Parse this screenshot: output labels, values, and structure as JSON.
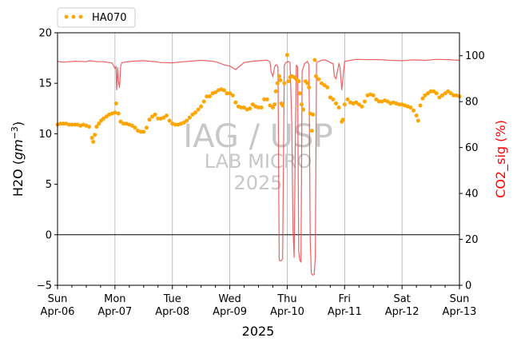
{
  "chart_data": {
    "type": "line",
    "xlabel": "2025",
    "ylabel_left": "H2O (gm^-3)",
    "ylabel_right": "CO2_sig (%)",
    "ylim_left": [
      -5,
      20
    ],
    "ylim_right": [
      0,
      110
    ],
    "yticks_left": [
      "−5",
      "0",
      "5",
      "10",
      "15",
      "20"
    ],
    "yticks_right": [
      "0",
      "20",
      "40",
      "60",
      "80",
      "100"
    ],
    "x_tick_labels": [
      {
        "day": "Sun",
        "date": "Apr-06"
      },
      {
        "day": "Mon",
        "date": "Apr-07"
      },
      {
        "day": "Tue",
        "date": "Apr-08"
      },
      {
        "day": "Wed",
        "date": "Apr-09"
      },
      {
        "day": "Thu",
        "date": "Apr-10"
      },
      {
        "day": "Fri",
        "date": "Apr-11"
      },
      {
        "day": "Sat",
        "date": "Apr-12"
      },
      {
        "day": "Sun",
        "date": "Apr-13"
      }
    ],
    "xlim_days": [
      0,
      7
    ],
    "grid": "vertical at major ticks",
    "legend_position": "top-left above plot",
    "watermark": [
      "IAG / USP",
      "LAB MICRO",
      "2025"
    ],
    "series": [
      {
        "name": "HA070",
        "axis": "left",
        "style": "dots",
        "color": "#ffa500",
        "points": [
          [
            0.0,
            10.9
          ],
          [
            0.05,
            11.0
          ],
          [
            0.1,
            11.0
          ],
          [
            0.15,
            11.0
          ],
          [
            0.2,
            10.9
          ],
          [
            0.25,
            10.9
          ],
          [
            0.3,
            10.9
          ],
          [
            0.35,
            10.9
          ],
          [
            0.4,
            10.8
          ],
          [
            0.45,
            10.9
          ],
          [
            0.5,
            10.8
          ],
          [
            0.55,
            10.7
          ],
          [
            0.6,
            9.6
          ],
          [
            0.62,
            9.2
          ],
          [
            0.65,
            9.9
          ],
          [
            0.68,
            10.7
          ],
          [
            0.72,
            11.0
          ],
          [
            0.76,
            11.3
          ],
          [
            0.8,
            11.5
          ],
          [
            0.85,
            11.7
          ],
          [
            0.9,
            11.9
          ],
          [
            0.95,
            12.0
          ],
          [
            1.0,
            12.1
          ],
          [
            1.02,
            13.0
          ],
          [
            1.06,
            12.0
          ],
          [
            1.1,
            11.2
          ],
          [
            1.15,
            11.0
          ],
          [
            1.2,
            11.0
          ],
          [
            1.25,
            10.9
          ],
          [
            1.3,
            10.8
          ],
          [
            1.35,
            10.6
          ],
          [
            1.4,
            10.3
          ],
          [
            1.45,
            10.2
          ],
          [
            1.5,
            10.2
          ],
          [
            1.55,
            10.6
          ],
          [
            1.6,
            11.4
          ],
          [
            1.65,
            11.7
          ],
          [
            1.7,
            11.9
          ],
          [
            1.75,
            11.5
          ],
          [
            1.8,
            11.5
          ],
          [
            1.85,
            11.6
          ],
          [
            1.9,
            11.8
          ],
          [
            1.95,
            11.3
          ],
          [
            2.0,
            11.0
          ],
          [
            2.05,
            10.9
          ],
          [
            2.1,
            10.9
          ],
          [
            2.15,
            11.0
          ],
          [
            2.2,
            11.1
          ],
          [
            2.25,
            11.3
          ],
          [
            2.3,
            11.6
          ],
          [
            2.35,
            11.9
          ],
          [
            2.4,
            12.1
          ],
          [
            2.45,
            12.4
          ],
          [
            2.5,
            12.7
          ],
          [
            2.55,
            13.2
          ],
          [
            2.6,
            13.7
          ],
          [
            2.65,
            13.7
          ],
          [
            2.7,
            14.0
          ],
          [
            2.75,
            14.1
          ],
          [
            2.8,
            14.3
          ],
          [
            2.85,
            14.4
          ],
          [
            2.9,
            14.3
          ],
          [
            2.95,
            14.0
          ],
          [
            3.0,
            14.0
          ],
          [
            3.05,
            13.8
          ],
          [
            3.1,
            13.1
          ],
          [
            3.15,
            12.7
          ],
          [
            3.2,
            12.6
          ],
          [
            3.25,
            12.6
          ],
          [
            3.3,
            12.4
          ],
          [
            3.35,
            12.5
          ],
          [
            3.4,
            12.9
          ],
          [
            3.45,
            12.7
          ],
          [
            3.5,
            12.6
          ],
          [
            3.55,
            12.6
          ],
          [
            3.6,
            13.4
          ],
          [
            3.65,
            13.4
          ],
          [
            3.7,
            12.8
          ],
          [
            3.75,
            12.6
          ],
          [
            3.78,
            12.9
          ],
          [
            3.8,
            14.2
          ],
          [
            3.83,
            15.0
          ],
          [
            3.86,
            15.7
          ],
          [
            3.88,
            15.3
          ],
          [
            3.9,
            13.0
          ],
          [
            3.92,
            12.8
          ],
          [
            3.95,
            15.0
          ],
          [
            4.0,
            17.8
          ],
          [
            4.02,
            15.2
          ],
          [
            4.05,
            15.6
          ],
          [
            4.08,
            15.7
          ],
          [
            4.12,
            15.6
          ],
          [
            4.16,
            15.4
          ],
          [
            4.2,
            15.2
          ],
          [
            4.22,
            14.0
          ],
          [
            4.25,
            12.9
          ],
          [
            4.28,
            12.4
          ],
          [
            4.32,
            15.2
          ],
          [
            4.35,
            15.0
          ],
          [
            4.38,
            14.6
          ],
          [
            4.4,
            12.0
          ],
          [
            4.43,
            10.3
          ],
          [
            4.45,
            11.9
          ],
          [
            4.48,
            17.3
          ],
          [
            4.5,
            15.7
          ],
          [
            4.55,
            15.4
          ],
          [
            4.6,
            15.0
          ],
          [
            4.65,
            14.8
          ],
          [
            4.7,
            14.6
          ],
          [
            4.75,
            13.6
          ],
          [
            4.8,
            13.4
          ],
          [
            4.85,
            13.0
          ],
          [
            4.9,
            12.6
          ],
          [
            4.95,
            11.2
          ],
          [
            4.97,
            11.4
          ],
          [
            5.0,
            12.9
          ],
          [
            5.05,
            13.4
          ],
          [
            5.1,
            13.1
          ],
          [
            5.15,
            13.0
          ],
          [
            5.2,
            13.1
          ],
          [
            5.25,
            12.9
          ],
          [
            5.3,
            12.7
          ],
          [
            5.35,
            13.2
          ],
          [
            5.4,
            13.8
          ],
          [
            5.45,
            13.9
          ],
          [
            5.5,
            13.8
          ],
          [
            5.55,
            13.4
          ],
          [
            5.6,
            13.2
          ],
          [
            5.65,
            13.2
          ],
          [
            5.7,
            13.3
          ],
          [
            5.75,
            13.2
          ],
          [
            5.8,
            13.0
          ],
          [
            5.85,
            13.1
          ],
          [
            5.9,
            13.0
          ],
          [
            5.95,
            12.9
          ],
          [
            6.0,
            12.9
          ],
          [
            6.05,
            12.8
          ],
          [
            6.1,
            12.7
          ],
          [
            6.15,
            12.6
          ],
          [
            6.2,
            12.3
          ],
          [
            6.25,
            11.8
          ],
          [
            6.28,
            11.3
          ],
          [
            6.32,
            12.8
          ],
          [
            6.36,
            13.5
          ],
          [
            6.4,
            13.8
          ],
          [
            6.45,
            14.0
          ],
          [
            6.5,
            14.2
          ],
          [
            6.55,
            14.2
          ],
          [
            6.6,
            14.0
          ],
          [
            6.65,
            13.6
          ],
          [
            6.7,
            13.8
          ],
          [
            6.75,
            14.0
          ],
          [
            6.8,
            14.2
          ],
          [
            6.85,
            14.0
          ],
          [
            6.9,
            13.8
          ],
          [
            6.95,
            13.8
          ],
          [
            7.0,
            13.7
          ]
        ]
      },
      {
        "name": "CO2_sig",
        "axis": "right",
        "style": "line",
        "color": "#e8474c",
        "points": [
          [
            0.0,
            97.5
          ],
          [
            0.1,
            97.2
          ],
          [
            0.3,
            97.6
          ],
          [
            0.5,
            97.4
          ],
          [
            0.55,
            97.8
          ],
          [
            0.7,
            97.4
          ],
          [
            0.8,
            97.4
          ],
          [
            0.95,
            96.8
          ],
          [
            1.0,
            94.5
          ],
          [
            1.02,
            95.2
          ],
          [
            1.03,
            85.0
          ],
          [
            1.05,
            95.0
          ],
          [
            1.06,
            89.0
          ],
          [
            1.08,
            86.0
          ],
          [
            1.1,
            95.5
          ],
          [
            1.12,
            97.0
          ],
          [
            1.3,
            97.6
          ],
          [
            1.5,
            97.8
          ],
          [
            1.7,
            97.4
          ],
          [
            1.8,
            97.0
          ],
          [
            2.0,
            96.9
          ],
          [
            2.2,
            97.4
          ],
          [
            2.5,
            98.0
          ],
          [
            2.7,
            97.6
          ],
          [
            2.8,
            97.0
          ],
          [
            2.9,
            96.0
          ],
          [
            3.0,
            95.5
          ],
          [
            3.1,
            94.0
          ],
          [
            3.15,
            95.0
          ],
          [
            3.25,
            97.0
          ],
          [
            3.4,
            97.6
          ],
          [
            3.5,
            97.8
          ],
          [
            3.6,
            98.0
          ],
          [
            3.65,
            98.1
          ],
          [
            3.7,
            97.3
          ],
          [
            3.72,
            93.0
          ],
          [
            3.75,
            91.0
          ],
          [
            3.78,
            95.0
          ],
          [
            3.8,
            96.0
          ],
          [
            3.82,
            96.0
          ],
          [
            3.84,
            95.0
          ],
          [
            3.86,
            11.0
          ],
          [
            3.88,
            10.6
          ],
          [
            3.9,
            10.8
          ],
          [
            3.92,
            11.5
          ],
          [
            3.95,
            96.0
          ],
          [
            3.98,
            97.0
          ],
          [
            4.02,
            97.5
          ],
          [
            4.05,
            97.0
          ],
          [
            4.08,
            70.0
          ],
          [
            4.1,
            25.0
          ],
          [
            4.12,
            12.0
          ],
          [
            4.14,
            60.0
          ],
          [
            4.16,
            96.0
          ],
          [
            4.18,
            95.0
          ],
          [
            4.2,
            15.0
          ],
          [
            4.22,
            11.0
          ],
          [
            4.24,
            10.0
          ],
          [
            4.26,
            93.0
          ],
          [
            4.3,
            96.5
          ],
          [
            4.35,
            97.5
          ],
          [
            4.38,
            96.0
          ],
          [
            4.4,
            20.0
          ],
          [
            4.42,
            5.0
          ],
          [
            4.45,
            4.4
          ],
          [
            4.47,
            4.8
          ],
          [
            4.49,
            12.0
          ],
          [
            4.51,
            97.0
          ],
          [
            4.55,
            97.5
          ],
          [
            4.6,
            98.0
          ],
          [
            4.65,
            98.2
          ],
          [
            4.7,
            97.8
          ],
          [
            4.75,
            97.0
          ],
          [
            4.8,
            96.5
          ],
          [
            4.82,
            91.0
          ],
          [
            4.85,
            90.0
          ],
          [
            4.88,
            94.0
          ],
          [
            4.9,
            96.5
          ],
          [
            4.92,
            95.0
          ],
          [
            4.95,
            85.0
          ],
          [
            4.97,
            90.0
          ],
          [
            5.0,
            97.5
          ],
          [
            5.1,
            98.0
          ],
          [
            5.2,
            98.4
          ],
          [
            5.4,
            98.3
          ],
          [
            5.6,
            98.3
          ],
          [
            5.8,
            98.0
          ],
          [
            6.0,
            97.8
          ],
          [
            6.2,
            98.2
          ],
          [
            6.4,
            98.0
          ],
          [
            6.6,
            98.4
          ],
          [
            6.8,
            98.3
          ],
          [
            7.0,
            98.0
          ]
        ]
      }
    ]
  }
}
